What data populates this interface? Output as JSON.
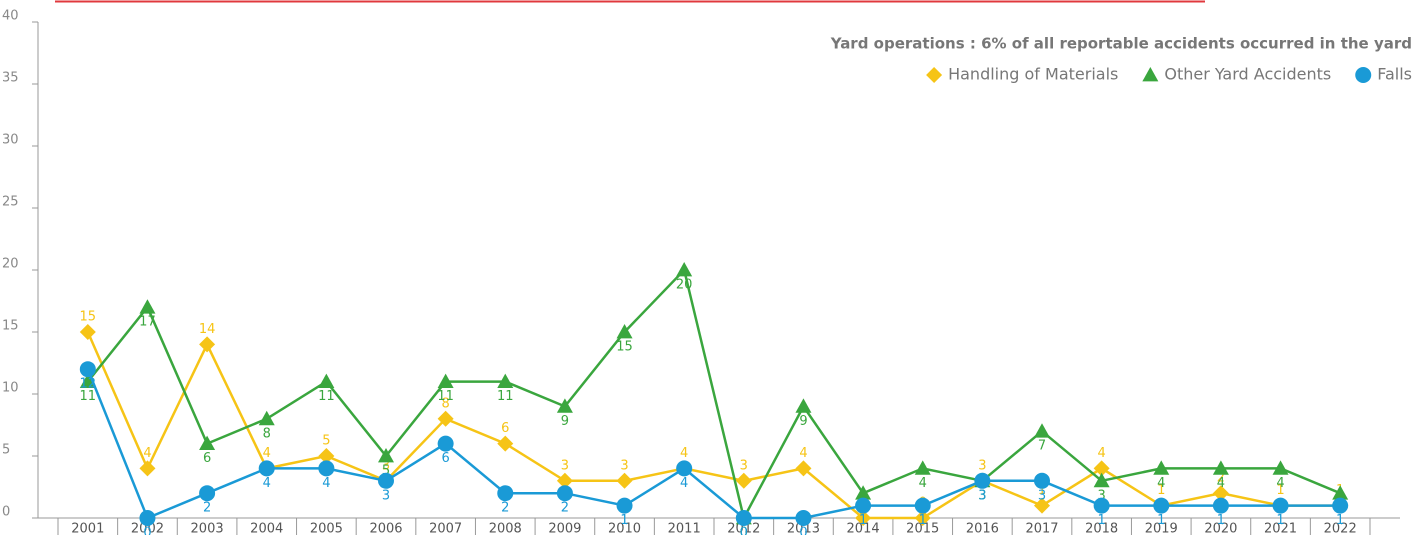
{
  "chart_data": {
    "type": "line",
    "title": "Yard operations : 6% of all reportable accidents occurred in the yard",
    "categories": [
      "2001",
      "2002",
      "2003",
      "2004",
      "2005",
      "2006",
      "2007",
      "2008",
      "2009",
      "2010",
      "2011",
      "2012",
      "2013",
      "2014",
      "2015",
      "2016",
      "2017",
      "2018",
      "2019",
      "2020",
      "2021",
      "2022"
    ],
    "series": [
      {
        "name": "Handling of Materials",
        "color": "#f6c416",
        "marker": "diamond",
        "values": [
          15,
          4,
          14,
          4,
          5,
          3,
          8,
          6,
          3,
          3,
          4,
          3,
          4,
          0,
          0,
          3,
          1,
          4,
          1,
          2,
          1,
          1
        ]
      },
      {
        "name": "Other Yard Accidents",
        "color": "#3aa63e",
        "marker": "triangle",
        "values": [
          11,
          17,
          6,
          8,
          11,
          5,
          11,
          11,
          9,
          15,
          20,
          0,
          9,
          2,
          4,
          3,
          7,
          3,
          4,
          4,
          4,
          2
        ]
      },
      {
        "name": "Falls",
        "color": "#1a9ad6",
        "marker": "circle",
        "values": [
          12,
          0,
          2,
          4,
          4,
          3,
          6,
          2,
          2,
          1,
          4,
          0,
          0,
          1,
          1,
          3,
          3,
          1,
          1,
          1,
          1,
          1
        ]
      }
    ],
    "ylim": [
      0,
      40
    ],
    "yticks": [
      0,
      5,
      10,
      15,
      20,
      25,
      30,
      35,
      40
    ],
    "legend": "top-right"
  }
}
